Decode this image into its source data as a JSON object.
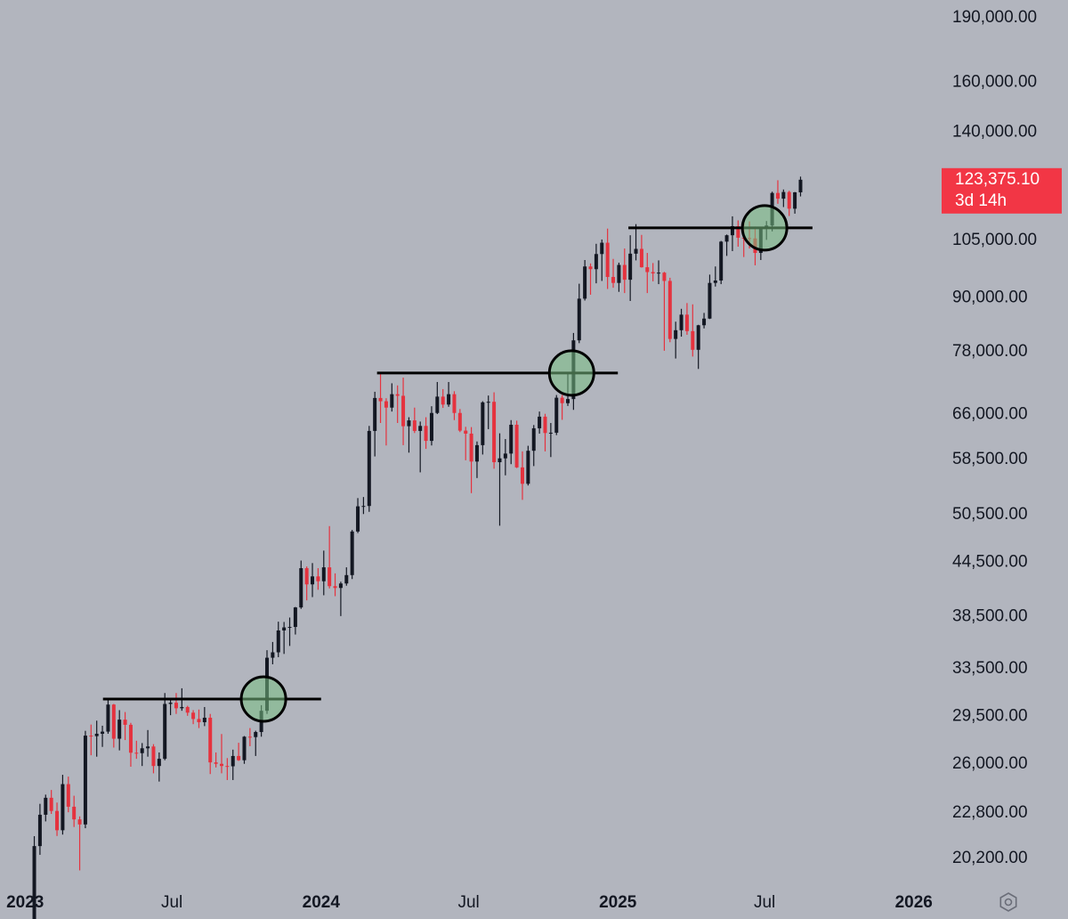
{
  "chart_data": {
    "type": "candlestick",
    "log_scale": true,
    "background": "#b2b5be",
    "up_color": "#131722",
    "down_color": "#e5323e",
    "ylim": [
      18770,
      199200
    ],
    "yticks": [
      {
        "value": 190000,
        "label": "190,000.00"
      },
      {
        "value": 160000,
        "label": "160,000.00"
      },
      {
        "value": 140000,
        "label": "140,000.00"
      },
      {
        "value": 105000,
        "label": "105,000.00"
      },
      {
        "value": 90000,
        "label": "90,000.00"
      },
      {
        "value": 78000,
        "label": "78,000.00"
      },
      {
        "value": 66000,
        "label": "66,000.00"
      },
      {
        "value": 58500,
        "label": "58,500.00"
      },
      {
        "value": 50500,
        "label": "50,500.00"
      },
      {
        "value": 44500,
        "label": "44,500.00"
      },
      {
        "value": 38500,
        "label": "38,500.00"
      },
      {
        "value": 33500,
        "label": "33,500.00"
      },
      {
        "value": 29500,
        "label": "29,500.00"
      },
      {
        "value": 26000,
        "label": "26,000.00"
      },
      {
        "value": 22800,
        "label": "22,800.00"
      },
      {
        "value": 20200,
        "label": "20,200.00"
      }
    ],
    "xlim": [
      "2022-12-01",
      "2026-02-01"
    ],
    "xticks": [
      {
        "value": "2023-01-01",
        "label": "2023"
      },
      {
        "value": "2023-07-01",
        "label": "Jul"
      },
      {
        "value": "2024-01-01",
        "label": "2024"
      },
      {
        "value": "2024-07-01",
        "label": "Jul"
      },
      {
        "value": "2025-01-01",
        "label": "2025"
      },
      {
        "value": "2025-07-01",
        "label": "Jul"
      },
      {
        "value": "2026-01-01",
        "label": "2026"
      }
    ],
    "last_price": {
      "value": 123375.1,
      "label": "123,375.10"
    },
    "countdown": "3d 14h",
    "levels": [
      {
        "price": 30900,
        "start": "2023-04-07",
        "end": "2024-01-01",
        "circle": "2023-10-22"
      },
      {
        "price": 73700,
        "start": "2024-03-10",
        "end": "2025-01-01",
        "circle": "2024-11-05"
      },
      {
        "price": 108500,
        "start": "2025-01-14",
        "end": "2025-08-29",
        "circle": "2025-07-01"
      }
    ],
    "x": [
      "2023-01-09",
      "2023-01-16",
      "2023-01-23",
      "2023-01-30",
      "2023-02-06",
      "2023-02-13",
      "2023-02-20",
      "2023-02-27",
      "2023-03-06",
      "2023-03-13",
      "2023-03-20",
      "2023-03-27",
      "2023-04-03",
      "2023-04-10",
      "2023-04-17",
      "2023-04-24",
      "2023-05-01",
      "2023-05-08",
      "2023-05-15",
      "2023-05-22",
      "2023-05-29",
      "2023-06-05",
      "2023-06-12",
      "2023-06-19",
      "2023-06-26",
      "2023-07-03",
      "2023-07-10",
      "2023-07-17",
      "2023-07-24",
      "2023-07-31",
      "2023-08-07",
      "2023-08-14",
      "2023-08-21",
      "2023-08-28",
      "2023-09-04",
      "2023-09-11",
      "2023-09-18",
      "2023-09-25",
      "2023-10-02",
      "2023-10-09",
      "2023-10-16",
      "2023-10-23",
      "2023-10-30",
      "2023-11-06",
      "2023-11-13",
      "2023-11-20",
      "2023-11-27",
      "2023-12-04",
      "2023-12-11",
      "2023-12-18",
      "2023-12-25",
      "2024-01-01",
      "2024-01-08",
      "2024-01-15",
      "2024-01-22",
      "2024-01-29",
      "2024-02-05",
      "2024-02-12",
      "2024-02-19",
      "2024-02-26",
      "2024-03-04",
      "2024-03-11",
      "2024-03-18",
      "2024-03-25",
      "2024-04-01",
      "2024-04-08",
      "2024-04-15",
      "2024-04-22",
      "2024-04-29",
      "2024-05-06",
      "2024-05-13",
      "2024-05-20",
      "2024-05-27",
      "2024-06-03",
      "2024-06-10",
      "2024-06-17",
      "2024-06-24",
      "2024-07-01",
      "2024-07-08",
      "2024-07-15",
      "2024-07-22",
      "2024-07-29",
      "2024-08-05",
      "2024-08-12",
      "2024-08-19",
      "2024-08-26",
      "2024-09-02",
      "2024-09-09",
      "2024-09-16",
      "2024-09-23",
      "2024-09-30",
      "2024-10-07",
      "2024-10-14",
      "2024-10-21",
      "2024-10-28",
      "2024-11-04",
      "2024-11-11",
      "2024-11-18",
      "2024-11-25",
      "2024-12-02",
      "2024-12-09",
      "2024-12-16",
      "2024-12-23",
      "2024-12-30",
      "2025-01-06",
      "2025-01-13",
      "2025-01-20",
      "2025-01-27",
      "2025-02-03",
      "2025-02-10",
      "2025-02-17",
      "2025-02-24",
      "2025-03-03",
      "2025-03-10",
      "2025-03-17",
      "2025-03-24",
      "2025-03-31",
      "2025-04-07",
      "2025-04-14",
      "2025-04-21",
      "2025-04-28",
      "2025-05-05",
      "2025-05-12",
      "2025-05-19",
      "2025-05-26",
      "2025-06-02",
      "2025-06-09",
      "2025-06-16",
      "2025-06-23",
      "2025-06-30",
      "2025-07-07",
      "2025-07-14",
      "2025-07-21",
      "2025-07-28",
      "2025-08-04",
      "2025-08-11"
    ],
    "open": [
      17130,
      20880,
      22700,
      23750,
      22930,
      21780,
      24630,
      23190,
      22420,
      22120,
      28030,
      27990,
      28170,
      28330,
      30450,
      27800,
      29250,
      28850,
      26780,
      26750,
      27100,
      27230,
      25850,
      26350,
      30500,
      30600,
      30150,
      30250,
      29800,
      29300,
      29050,
      29400,
      26100,
      26000,
      25850,
      25830,
      26550,
      26250,
      27950,
      27920,
      28300,
      29950,
      34500,
      35000,
      37100,
      37400,
      37450,
      39450,
      43800,
      41950,
      42850,
      42300,
      43900,
      41750,
      41550,
      42050,
      43000,
      48300,
      51650,
      51700,
      63150,
      68950,
      68350,
      67200,
      69650,
      69350,
      63950,
      64950,
      63150,
      64000,
      61500,
      66250,
      69200,
      67750,
      69650,
      66250,
      63200,
      62700,
      58200,
      60800,
      68150,
      68250,
      58100,
      58700,
      59450,
      64200,
      57300,
      54850,
      59900,
      63600,
      65600,
      62800,
      62850,
      69000,
      68000,
      68750,
      80400,
      89850,
      97900,
      97200,
      101200,
      104300,
      95200,
      93700,
      98300,
      94500,
      101300,
      102600,
      97700,
      96450,
      96100,
      96300,
      94200,
      80700,
      82600,
      86100,
      82400,
      78400,
      83700,
      85200,
      93700,
      94300,
      104600,
      106400,
      109000,
      105700,
      105600,
      105500,
      101500,
      108300,
      109200,
      119100,
      117300,
      119400,
      114200,
      119300
    ],
    "high": [
      21440,
      23370,
      23950,
      24250,
      23450,
      25250,
      25130,
      23880,
      22600,
      28390,
      28870,
      29170,
      28780,
      30950,
      30500,
      30000,
      29850,
      29000,
      27650,
      27480,
      28450,
      27400,
      26800,
      31400,
      31000,
      31400,
      31800,
      30350,
      30000,
      30050,
      30250,
      29700,
      26800,
      28150,
      26400,
      27000,
      27500,
      28000,
      28600,
      28400,
      30400,
      35200,
      35980,
      37980,
      37950,
      38400,
      39500,
      44700,
      44000,
      44400,
      43800,
      45900,
      49000,
      43200,
      42250,
      43900,
      48500,
      52800,
      52950,
      64000,
      70100,
      73800,
      68900,
      71700,
      71300,
      72800,
      65500,
      67200,
      64750,
      65500,
      67450,
      71950,
      70600,
      71950,
      70200,
      66950,
      63850,
      63800,
      61400,
      68350,
      69400,
      70000,
      62750,
      61800,
      65000,
      64900,
      59800,
      60700,
      64150,
      66500,
      66100,
      64500,
      69500,
      69500,
      73600,
      82000,
      93500,
      99600,
      98700,
      104000,
      105200,
      108300,
      99900,
      98900,
      102700,
      106400,
      109600,
      106500,
      101500,
      98800,
      99500,
      96500,
      95000,
      84500,
      87450,
      88800,
      88500,
      83800,
      86500,
      95800,
      97900,
      104800,
      106600,
      111900,
      110700,
      110500,
      110400,
      108900,
      108500,
      110500,
      119500,
      123200,
      120200,
      119800,
      119400,
      124400
    ],
    "low": [
      17100,
      20400,
      22300,
      22750,
      21450,
      21530,
      22850,
      21970,
      19570,
      21900,
      26600,
      26500,
      27200,
      28170,
      27150,
      26950,
      27700,
      25800,
      26350,
      25850,
      26500,
      25350,
      24800,
      26250,
      29600,
      29700,
      29950,
      29550,
      28900,
      28600,
      28750,
      25300,
      25750,
      25350,
      24900,
      24900,
      26200,
      26000,
      27250,
      26550,
      27950,
      29700,
      33900,
      34550,
      34850,
      35600,
      36700,
      39300,
      40200,
      40550,
      41350,
      40750,
      41500,
      40650,
      38550,
      41800,
      42550,
      48100,
      50600,
      50900,
      59000,
      64500,
      60750,
      66500,
      64500,
      60800,
      59600,
      62800,
      56550,
      60200,
      60750,
      66050,
      67150,
      67350,
      65000,
      62950,
      58400,
      53500,
      55700,
      59300,
      63450,
      57100,
      49050,
      56100,
      57800,
      57200,
      52550,
      54600,
      57500,
      62700,
      59800,
      58900,
      62450,
      65050,
      67500,
      66800,
      79800,
      89400,
      90800,
      93600,
      94200,
      92200,
      92500,
      91500,
      91200,
      89300,
      99500,
      97600,
      91200,
      94100,
      93400,
      78200,
      80000,
      76600,
      81200,
      81600,
      77000,
      74500,
      83000,
      85100,
      92800,
      93400,
      100700,
      102000,
      103200,
      100400,
      102700,
      98200,
      99600,
      105100,
      107500,
      115700,
      114700,
      112000,
      112700,
      118000
    ],
    "close": [
      20880,
      22700,
      23750,
      22930,
      21780,
      24630,
      23190,
      22420,
      22120,
      28030,
      27990,
      28170,
      28330,
      30450,
      27800,
      29250,
      28850,
      26780,
      26750,
      27100,
      27230,
      25850,
      26350,
      30500,
      30600,
      30150,
      30250,
      29800,
      29300,
      29050,
      29400,
      26100,
      26000,
      25850,
      25830,
      26550,
      26250,
      27950,
      27920,
      28300,
      29950,
      34500,
      35000,
      37100,
      37400,
      37450,
      39450,
      43800,
      41950,
      42850,
      42300,
      43900,
      41750,
      41550,
      42050,
      43000,
      48300,
      51650,
      51700,
      63150,
      68950,
      68350,
      67200,
      69650,
      69350,
      63950,
      64950,
      63150,
      64000,
      61500,
      66250,
      69200,
      67750,
      69650,
      66250,
      63200,
      62700,
      58200,
      60800,
      68150,
      68250,
      58100,
      58700,
      59450,
      64200,
      57300,
      54850,
      59900,
      63600,
      65600,
      62800,
      62850,
      69000,
      68000,
      68750,
      80400,
      89850,
      97900,
      97200,
      101200,
      104300,
      95200,
      93700,
      98300,
      94500,
      101300,
      102600,
      97700,
      96450,
      96100,
      96300,
      94200,
      80700,
      82600,
      86100,
      82400,
      78400,
      83700,
      85200,
      93700,
      94300,
      104600,
      106400,
      109000,
      105700,
      105600,
      105500,
      101500,
      108300,
      109200,
      119100,
      117300,
      119400,
      114200,
      119300,
      123375.1
    ]
  }
}
